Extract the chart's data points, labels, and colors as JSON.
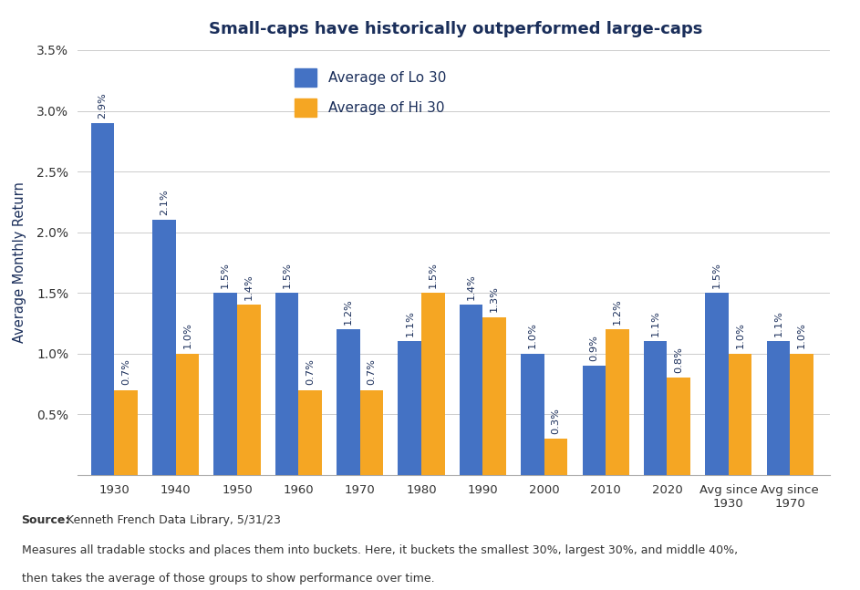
{
  "title": "Small-caps have historically outperformed large-caps",
  "categories": [
    "1930",
    "1940",
    "1950",
    "1960",
    "1970",
    "1980",
    "1990",
    "2000",
    "2010",
    "2020",
    "Avg since\n1930",
    "Avg since\n1970"
  ],
  "lo30": [
    2.9,
    2.1,
    1.5,
    1.5,
    1.2,
    1.1,
    1.4,
    1.0,
    0.9,
    1.1,
    1.5,
    1.1
  ],
  "hi30": [
    0.7,
    1.0,
    1.4,
    0.7,
    0.7,
    1.5,
    1.3,
    0.3,
    1.2,
    0.8,
    1.0,
    1.0
  ],
  "lo30_labels": [
    "2.9%",
    "2.1%",
    "1.5%",
    "1.5%",
    "1.2%",
    "1.1%",
    "1.4%",
    "1.0%",
    "0.9%",
    "1.1%",
    "1.5%",
    "1.1%"
  ],
  "hi30_labels": [
    "0.7%",
    "1.0%",
    "1.4%",
    "0.7%",
    "0.7%",
    "1.5%",
    "1.3%",
    "0.3%",
    "1.2%",
    "0.8%",
    "1.0%",
    "1.0%"
  ],
  "lo30_color": "#4472c4",
  "hi30_color": "#f5a623",
  "ylabel": "Average Monthly Return",
  "ylim_min": 0,
  "ylim_max": 3.5,
  "yticks": [
    0.0,
    0.5,
    1.0,
    1.5,
    2.0,
    2.5,
    3.0,
    3.5
  ],
  "ytick_labels": [
    "",
    "0.5%",
    "1.0%",
    "1.5%",
    "2.0%",
    "2.5%",
    "3.0%",
    "3.5%"
  ],
  "legend_lo30": "Average of Lo 30",
  "legend_hi30": "Average of Hi 30",
  "source_bold": "Source:",
  "source_rest": " Kenneth French Data Library, 5/31/23",
  "source_line2": "Measures all tradable stocks and places them into buckets. Here, it buckets the smallest 30%, largest 30%, and middle 40%,",
  "source_line3": "then takes the average of those groups to show performance over time.",
  "background_color": "#ffffff",
  "footer_bg": "#efefef",
  "title_color": "#1a2e5a",
  "axis_label_color": "#1a2e5a",
  "tick_label_color": "#333333",
  "bar_label_color": "#1a2e5a",
  "bar_width": 0.38,
  "source_text_color": "#333333"
}
